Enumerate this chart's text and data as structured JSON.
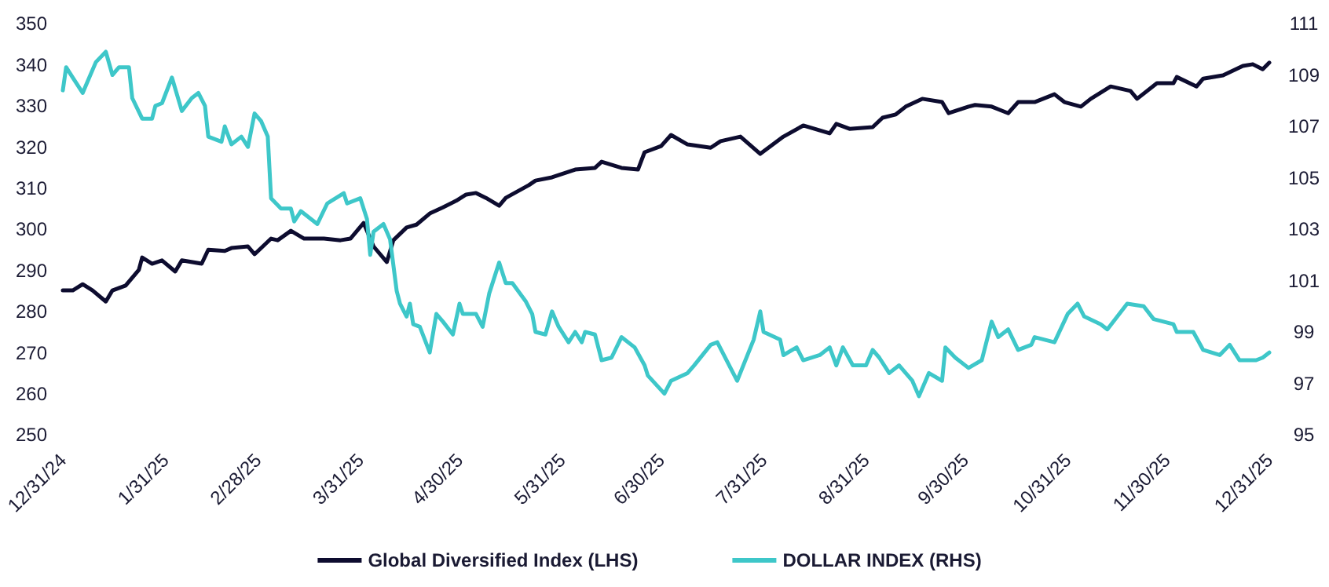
{
  "chart_data": {
    "type": "line",
    "ylim": [
      250,
      350
    ],
    "yticks": [
      250,
      260,
      270,
      280,
      290,
      300,
      310,
      320,
      330,
      340,
      350
    ],
    "y2lim": [
      95,
      111
    ],
    "y2ticks": [
      95,
      97,
      99,
      101,
      103,
      105,
      107,
      109,
      111
    ],
    "xlim": [
      "2024-12-31",
      "2025-12-31"
    ],
    "xticks": [
      {
        "value": "2024-12-31",
        "label": "12/31/24"
      },
      {
        "value": "2025-01-31",
        "label": "1/31/25"
      },
      {
        "value": "2025-02-28",
        "label": "2/28/25"
      },
      {
        "value": "2025-03-31",
        "label": "3/31/25"
      },
      {
        "value": "2025-04-30",
        "label": "4/30/25"
      },
      {
        "value": "2025-05-31",
        "label": "5/31/25"
      },
      {
        "value": "2025-06-30",
        "label": "6/30/25"
      },
      {
        "value": "2025-07-31",
        "label": "7/31/25"
      },
      {
        "value": "2025-08-31",
        "label": "8/31/25"
      },
      {
        "value": "2025-09-30",
        "label": "9/30/25"
      },
      {
        "value": "2025-10-31",
        "label": "10/31/25"
      },
      {
        "value": "2025-11-30",
        "label": "11/30/25"
      },
      {
        "value": "2025-12-31",
        "label": "12/31/25"
      }
    ],
    "legend": "bottom",
    "grid": false,
    "series": [
      {
        "name": "Global Diversified Index (LHS)",
        "color": "#0d0c2f",
        "x": [
          "2024-12-31",
          "2025-01-03",
          "2025-01-06",
          "2025-01-09",
          "2025-01-13",
          "2025-01-15",
          "2025-01-19",
          "2025-01-23",
          "2025-01-24",
          "2025-01-27",
          "2025-01-30",
          "2025-02-03",
          "2025-02-05",
          "2025-02-11",
          "2025-02-13",
          "2025-02-18",
          "2025-02-20",
          "2025-02-25",
          "2025-02-27",
          "2025-03-04",
          "2025-03-06",
          "2025-03-10",
          "2025-03-14",
          "2025-03-20",
          "2025-03-25",
          "2025-03-28",
          "2025-04-01",
          "2025-04-04",
          "2025-04-08",
          "2025-04-10",
          "2025-04-14",
          "2025-04-17",
          "2025-04-21",
          "2025-04-25",
          "2025-04-29",
          "2025-05-02",
          "2025-05-05",
          "2025-05-08",
          "2025-05-12",
          "2025-05-14",
          "2025-05-21",
          "2025-05-23",
          "2025-05-28",
          "2025-06-04",
          "2025-06-10",
          "2025-06-12",
          "2025-06-18",
          "2025-06-23",
          "2025-06-25",
          "2025-06-30",
          "2025-07-03",
          "2025-07-08",
          "2025-07-15",
          "2025-07-18",
          "2025-07-24",
          "2025-07-30",
          "2025-08-06",
          "2025-08-12",
          "2025-08-20",
          "2025-08-22",
          "2025-08-26",
          "2025-09-02",
          "2025-09-05",
          "2025-09-09",
          "2025-09-12",
          "2025-09-17",
          "2025-09-23",
          "2025-09-25",
          "2025-10-01",
          "2025-10-03",
          "2025-10-08",
          "2025-10-13",
          "2025-10-16",
          "2025-10-21",
          "2025-10-27",
          "2025-10-30",
          "2025-11-04",
          "2025-11-07",
          "2025-11-13",
          "2025-11-19",
          "2025-11-21",
          "2025-11-27",
          "2025-12-02",
          "2025-12-03",
          "2025-12-09",
          "2025-12-11",
          "2025-12-17",
          "2025-12-23",
          "2025-12-26",
          "2025-12-29",
          "2025-12-31"
        ],
        "values": [
          285.1,
          285.1,
          286.6,
          285.1,
          282.4,
          285.1,
          286.3,
          290.1,
          293.1,
          291.6,
          292.4,
          289.7,
          292.4,
          291.6,
          295.0,
          294.7,
          295.4,
          295.8,
          293.9,
          297.7,
          297.3,
          299.6,
          297.7,
          297.7,
          297.3,
          297.7,
          301.5,
          295.8,
          292.0,
          297.3,
          300.4,
          301.1,
          303.8,
          305.3,
          306.9,
          308.4,
          308.8,
          307.6,
          305.7,
          307.6,
          310.7,
          311.8,
          312.6,
          314.5,
          314.9,
          316.4,
          314.9,
          314.5,
          318.7,
          320.2,
          322.9,
          320.6,
          319.8,
          321.4,
          322.5,
          318.3,
          322.5,
          325.2,
          323.3,
          325.6,
          324.4,
          324.8,
          327.1,
          327.9,
          329.8,
          331.7,
          330.9,
          328.2,
          329.8,
          330.2,
          329.8,
          328.2,
          330.9,
          330.9,
          332.8,
          330.9,
          329.8,
          331.7,
          334.7,
          333.6,
          331.7,
          335.5,
          335.5,
          337.0,
          334.7,
          336.6,
          337.4,
          339.7,
          340.1,
          338.9,
          340.5
        ]
      },
      {
        "name": "DOLLAR INDEX (RHS)",
        "color": "#3ec7c9",
        "axis": "y2",
        "x": [
          "2024-12-31",
          "2025-01-01",
          "2025-01-03",
          "2025-01-06",
          "2025-01-08",
          "2025-01-10",
          "2025-01-13",
          "2025-01-15",
          "2025-01-17",
          "2025-01-20",
          "2025-01-21",
          "2025-01-24",
          "2025-01-27",
          "2025-01-28",
          "2025-01-30",
          "2025-02-02",
          "2025-02-05",
          "2025-02-08",
          "2025-02-10",
          "2025-02-12",
          "2025-02-13",
          "2025-02-17",
          "2025-02-18",
          "2025-02-20",
          "2025-02-23",
          "2025-02-25",
          "2025-02-27",
          "2025-03-01",
          "2025-03-03",
          "2025-03-04",
          "2025-03-07",
          "2025-03-10",
          "2025-03-11",
          "2025-03-13",
          "2025-03-18",
          "2025-03-21",
          "2025-03-26",
          "2025-03-27",
          "2025-03-31",
          "2025-04-02",
          "2025-04-03",
          "2025-04-04",
          "2025-04-07",
          "2025-04-09",
          "2025-04-11",
          "2025-04-12",
          "2025-04-14",
          "2025-04-15",
          "2025-04-16",
          "2025-04-18",
          "2025-04-21",
          "2025-04-23",
          "2025-04-25",
          "2025-04-28",
          "2025-04-30",
          "2025-05-01",
          "2025-05-05",
          "2025-05-07",
          "2025-05-09",
          "2025-05-12",
          "2025-05-14",
          "2025-05-16",
          "2025-05-20",
          "2025-05-22",
          "2025-05-23",
          "2025-05-26",
          "2025-05-28",
          "2025-05-30",
          "2025-06-02",
          "2025-06-04",
          "2025-06-06",
          "2025-06-07",
          "2025-06-10",
          "2025-06-12",
          "2025-06-15",
          "2025-06-18",
          "2025-06-22",
          "2025-06-25",
          "2025-06-26",
          "2025-07-01",
          "2025-07-03",
          "2025-07-08",
          "2025-07-10",
          "2025-07-15",
          "2025-07-17",
          "2025-07-21",
          "2025-07-23",
          "2025-07-28",
          "2025-07-30",
          "2025-07-31",
          "2025-08-05",
          "2025-08-06",
          "2025-08-10",
          "2025-08-12",
          "2025-08-17",
          "2025-08-20",
          "2025-08-22",
          "2025-08-24",
          "2025-08-27",
          "2025-08-31",
          "2025-09-02",
          "2025-09-04",
          "2025-09-07",
          "2025-09-10",
          "2025-09-12",
          "2025-09-14",
          "2025-09-16",
          "2025-09-19",
          "2025-09-23",
          "2025-09-24",
          "2025-09-27",
          "2025-10-01",
          "2025-10-05",
          "2025-10-08",
          "2025-10-10",
          "2025-10-13",
          "2025-10-16",
          "2025-10-20",
          "2025-10-21",
          "2025-10-27",
          "2025-10-31",
          "2025-11-03",
          "2025-11-05",
          "2025-11-10",
          "2025-11-12",
          "2025-11-18",
          "2025-11-23",
          "2025-11-26",
          "2025-12-02",
          "2025-12-03",
          "2025-12-08",
          "2025-12-11",
          "2025-12-16",
          "2025-12-19",
          "2025-12-22",
          "2025-12-27",
          "2025-12-29",
          "2025-12-31"
        ],
        "values": [
          108.4,
          109.3,
          108.9,
          108.3,
          108.9,
          109.5,
          109.9,
          109.0,
          109.3,
          109.3,
          108.1,
          107.3,
          107.3,
          107.8,
          107.9,
          108.9,
          107.6,
          108.1,
          108.3,
          107.8,
          106.6,
          106.4,
          107.0,
          106.3,
          106.6,
          106.2,
          107.5,
          107.2,
          106.6,
          104.2,
          103.8,
          103.8,
          103.3,
          103.7,
          103.2,
          104.0,
          104.4,
          104.0,
          104.2,
          103.4,
          102.0,
          102.9,
          103.2,
          102.6,
          100.6,
          100.1,
          99.6,
          100.1,
          99.3,
          99.2,
          98.2,
          99.7,
          99.4,
          98.9,
          100.1,
          99.7,
          99.7,
          99.2,
          100.5,
          101.7,
          100.9,
          100.9,
          100.2,
          99.7,
          99.0,
          98.9,
          99.8,
          99.2,
          98.6,
          99.0,
          98.6,
          99.0,
          98.9,
          97.9,
          98.0,
          98.8,
          98.4,
          97.7,
          97.3,
          96.6,
          97.1,
          97.4,
          97.7,
          98.5,
          98.6,
          97.6,
          97.1,
          98.7,
          99.8,
          99.0,
          98.7,
          98.1,
          98.4,
          97.9,
          98.1,
          98.4,
          97.7,
          98.4,
          97.7,
          97.7,
          98.3,
          98.0,
          97.4,
          97.7,
          97.4,
          97.1,
          96.5,
          97.4,
          97.1,
          98.4,
          98.0,
          97.6,
          97.9,
          99.4,
          98.8,
          99.1,
          98.3,
          98.5,
          98.8,
          98.6,
          99.7,
          100.1,
          99.6,
          99.3,
          99.1,
          100.1,
          100.0,
          99.5,
          99.3,
          99.0,
          99.0,
          98.3,
          98.1,
          98.5,
          97.9,
          97.9,
          98.0,
          98.2
        ]
      }
    ]
  }
}
